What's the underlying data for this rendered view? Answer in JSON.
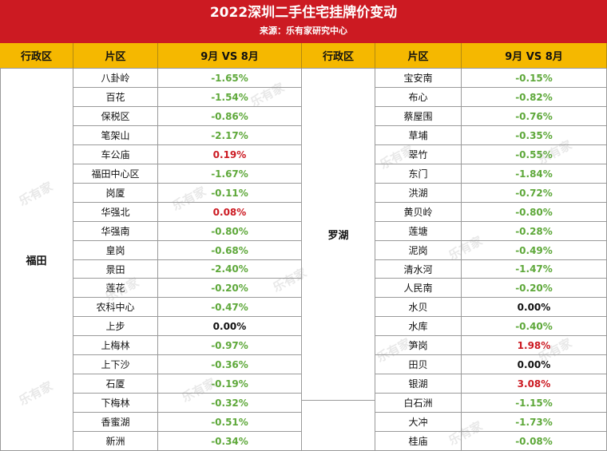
{
  "header": {
    "title": "2022深圳二手住宅挂牌价变动",
    "subtitle": "来源：乐有家研究中心"
  },
  "columns": [
    "行政区",
    "片区",
    "9月 VS 8月",
    "行政区",
    "片区",
    "9月 VS 8月"
  ],
  "watermark": "乐有家",
  "left": {
    "district": "福田",
    "rows": [
      {
        "area": "八卦岭",
        "change": "-1.65%"
      },
      {
        "area": "百花",
        "change": "-1.54%"
      },
      {
        "area": "保税区",
        "change": "-0.86%"
      },
      {
        "area": "笔架山",
        "change": "-2.17%"
      },
      {
        "area": "车公庙",
        "change": "0.19%"
      },
      {
        "area": "福田中心区",
        "change": "-1.67%"
      },
      {
        "area": "岗厦",
        "change": "-0.11%"
      },
      {
        "area": "华强北",
        "change": "0.08%"
      },
      {
        "area": "华强南",
        "change": "-0.80%"
      },
      {
        "area": "皇岗",
        "change": "-0.68%"
      },
      {
        "area": "景田",
        "change": "-2.40%"
      },
      {
        "area": "莲花",
        "change": "-0.20%"
      },
      {
        "area": "农科中心",
        "change": "-0.47%"
      },
      {
        "area": "上步",
        "change": "0.00%"
      },
      {
        "area": "上梅林",
        "change": "-0.97%"
      },
      {
        "area": "上下沙",
        "change": "-0.36%"
      },
      {
        "area": "石厦",
        "change": "-0.19%"
      },
      {
        "area": "下梅林",
        "change": "-0.32%"
      },
      {
        "area": "香蜜湖",
        "change": "-0.51%"
      },
      {
        "area": "新洲",
        "change": "-0.34%"
      }
    ]
  },
  "right": {
    "district": "罗湖",
    "rows": [
      {
        "area": "宝安南",
        "change": "-0.15%"
      },
      {
        "area": "布心",
        "change": "-0.82%"
      },
      {
        "area": "蔡屋围",
        "change": "-0.76%"
      },
      {
        "area": "草埔",
        "change": "-0.35%"
      },
      {
        "area": "翠竹",
        "change": "-0.55%"
      },
      {
        "area": "东门",
        "change": "-1.84%"
      },
      {
        "area": "洪湖",
        "change": "-0.72%"
      },
      {
        "area": "黄贝岭",
        "change": "-0.80%"
      },
      {
        "area": "莲塘",
        "change": "-0.28%"
      },
      {
        "area": "泥岗",
        "change": "-0.49%"
      },
      {
        "area": "清水河",
        "change": "-1.47%"
      },
      {
        "area": "人民南",
        "change": "-0.20%"
      },
      {
        "area": "水贝",
        "change": "0.00%"
      },
      {
        "area": "水库",
        "change": "-0.40%"
      },
      {
        "area": "笋岗",
        "change": "1.98%"
      },
      {
        "area": "田贝",
        "change": "0.00%"
      },
      {
        "area": "银湖",
        "change": "3.08%"
      },
      {
        "area": "白石洲",
        "change": "-1.15%"
      },
      {
        "area": "大冲",
        "change": "-1.73%"
      },
      {
        "area": "桂庙",
        "change": "-0.08%"
      }
    ]
  },
  "colors": {
    "header_red": "#cc1a22",
    "header_yellow": "#f5b800",
    "negative": "#5ea83a",
    "positive": "#cc1a22",
    "zero": "#111111"
  }
}
